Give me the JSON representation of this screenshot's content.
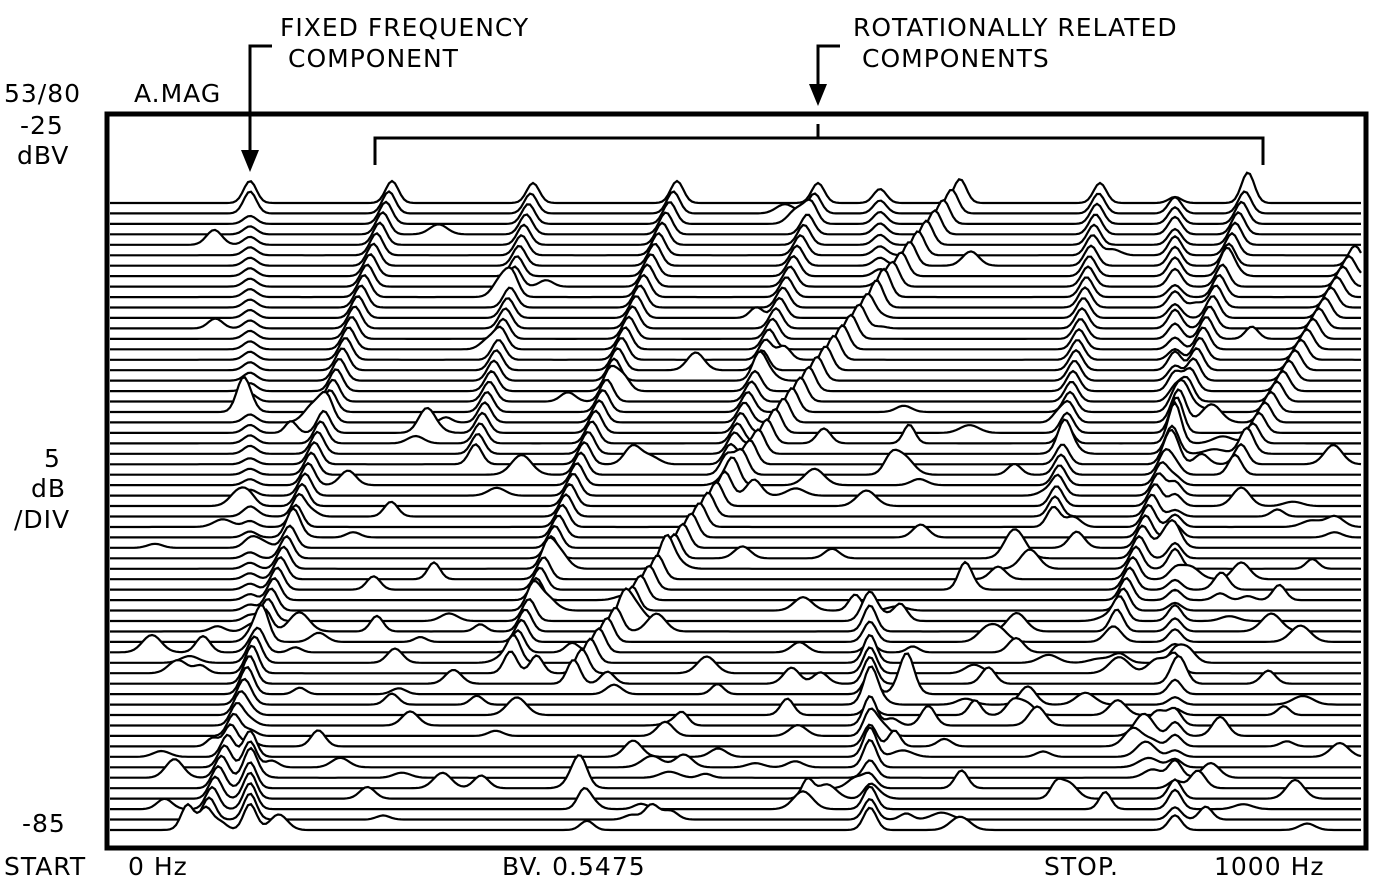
{
  "annotations": {
    "fixed": [
      "FIXED FREQUENCY",
      "COMPONENT"
    ],
    "rotational": [
      "ROTATIONALLY RELATED",
      "COMPONENTS"
    ]
  },
  "left_labels": {
    "trace": "53/80",
    "mode": "A.MAG",
    "ref_level": "-25",
    "ref_unit": "dBV",
    "scale": "5",
    "scale_unit": "dB",
    "scale_per": "/DIV",
    "bottom_level": "-85"
  },
  "footer": {
    "start": "START",
    "start_value": "0 Hz",
    "bv": "BV. 0.5475",
    "stop": "STOP.",
    "stop_value": "1000 Hz"
  }
}
